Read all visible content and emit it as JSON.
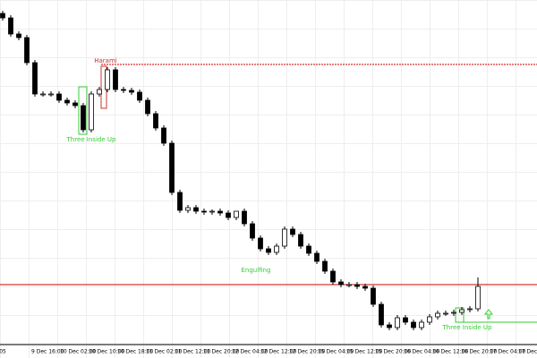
{
  "chart_data": {
    "type": "candlestick",
    "ylim": [
      0,
      385
    ],
    "open": [
      370,
      365,
      347,
      343,
      315,
      280,
      280,
      280,
      273,
      270,
      267,
      240,
      280,
      285,
      307,
      285,
      284,
      282,
      273,
      258,
      242,
      225,
      170,
      150,
      153,
      149,
      148,
      149,
      147,
      142,
      149,
      135,
      119,
      107,
      103,
      110,
      129,
      123,
      110,
      102,
      93,
      82,
      70,
      67,
      67,
      65,
      63,
      45,
      22,
      19,
      30,
      25,
      19,
      25,
      31,
      35,
      35,
      36,
      39,
      40
    ],
    "high": [
      373,
      368,
      350,
      346,
      318,
      283,
      283,
      283,
      276,
      273,
      270,
      283,
      288,
      310,
      310,
      288,
      287,
      285,
      276,
      261,
      245,
      228,
      173,
      156,
      156,
      152,
      151,
      152,
      150,
      149,
      152,
      138,
      122,
      110,
      113,
      132,
      132,
      126,
      113,
      105,
      96,
      85,
      73,
      70,
      70,
      68,
      66,
      48,
      25,
      33,
      33,
      28,
      28,
      34,
      38,
      38,
      39,
      42,
      43,
      75
    ],
    "low": [
      362,
      344,
      340,
      312,
      277,
      277,
      277,
      270,
      267,
      264,
      237,
      237,
      277,
      282,
      282,
      281,
      279,
      270,
      255,
      239,
      222,
      167,
      147,
      147,
      146,
      145,
      145,
      144,
      139,
      139,
      132,
      116,
      104,
      100,
      100,
      107,
      120,
      107,
      99,
      90,
      79,
      67,
      64,
      64,
      62,
      60,
      42,
      19,
      16,
      16,
      22,
      16,
      16,
      22,
      28,
      32,
      32,
      33,
      36,
      37
    ],
    "close": [
      365,
      347,
      343,
      315,
      280,
      280,
      280,
      273,
      270,
      267,
      240,
      280,
      285,
      307,
      285,
      284,
      282,
      273,
      258,
      242,
      225,
      170,
      150,
      153,
      149,
      148,
      149,
      147,
      142,
      149,
      135,
      119,
      107,
      103,
      110,
      129,
      123,
      110,
      102,
      93,
      82,
      70,
      67,
      67,
      65,
      63,
      45,
      22,
      19,
      30,
      25,
      19,
      25,
      31,
      35,
      35,
      36,
      39,
      40,
      65
    ],
    "up_color": "#ffffff",
    "down_color": "#000000",
    "x_labels": [
      "05",
      "9 Dec 16:00",
      "10 Dec 02:00",
      "10 Dec 10:00",
      "10 Dec 18:00",
      "11 Dec 02:00",
      "11 Dec 12:00",
      "11 Dec 20:00",
      "12 Dec 04:00",
      "12 Dec 12:00",
      "12 Dec 20:00",
      "15 Dec 04:00",
      "15 Dec 12:00",
      "15 Dec 20:00",
      "16 Dec 04:00",
      "16 Dec 12:00",
      "16 Dec 20:00",
      "17 Dec 04:00",
      "17 Dec 12:00"
    ],
    "hlines": [
      {
        "value": 313,
        "color": "#cc0000"
      },
      {
        "value": 67,
        "color": "#cc0000"
      },
      {
        "value": 25,
        "color": "#33cc33"
      }
    ],
    "annotations": [
      "Harami",
      "Three Inside Up",
      "Engulfing",
      "Three Inside Up"
    ]
  }
}
